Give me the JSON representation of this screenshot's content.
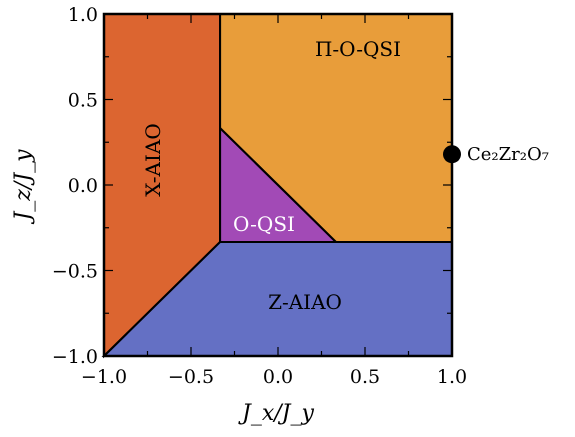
{
  "chart_data": {
    "type": "phase-diagram",
    "xlim": [
      -1.0,
      1.0
    ],
    "ylim": [
      -1.0,
      1.0
    ],
    "x_ticks": [
      "−1.0",
      "−0.5",
      "0.0",
      "0.5",
      "1.0"
    ],
    "y_ticks": [
      "−1.0",
      "−0.5",
      "0.0",
      "0.5",
      "1.0"
    ],
    "xlabel": "J_x/J_y",
    "ylabel": "J_z/J_y",
    "regions": [
      {
        "name": "X-AIAO",
        "color": "#dc6530",
        "polygon": [
          [
            -1,
            -1
          ],
          [
            -1,
            1
          ],
          [
            -0.333,
            1
          ],
          [
            -0.333,
            -0.333
          ]
        ]
      },
      {
        "name": "Z-AIAO",
        "color": "#6470c4",
        "polygon": [
          [
            -1,
            -1
          ],
          [
            -0.333,
            -0.333
          ],
          [
            1,
            -0.333
          ],
          [
            1,
            -1
          ]
        ]
      },
      {
        "name": "O-QSI",
        "color": "#a24ab6",
        "polygon": [
          [
            -0.333,
            -0.333
          ],
          [
            -0.333,
            0.333
          ],
          [
            0.333,
            -0.333
          ]
        ]
      },
      {
        "name": "Π-O-QSI",
        "color": "#e89d3a",
        "polygon": [
          [
            -0.333,
            1
          ],
          [
            1,
            1
          ],
          [
            1,
            -0.333
          ],
          [
            0.333,
            -0.333
          ],
          [
            -0.333,
            0.333
          ]
        ]
      }
    ],
    "points": [
      {
        "label": "Ce₂Zr₂O₇",
        "x": 1.0,
        "y": 0.18
      }
    ]
  }
}
